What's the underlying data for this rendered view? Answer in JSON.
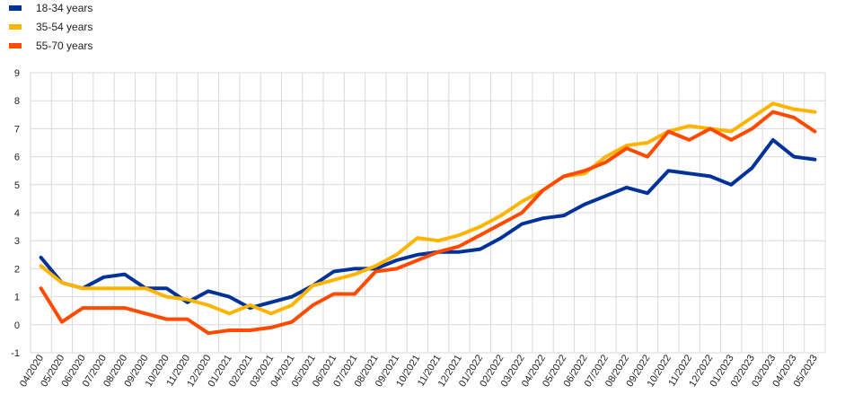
{
  "chart_data": {
    "type": "line",
    "title": "",
    "xlabel": "",
    "ylabel": "",
    "ylim": [
      -1,
      9
    ],
    "yticks": [
      -1,
      0,
      1,
      2,
      3,
      4,
      5,
      6,
      7,
      8,
      9
    ],
    "grid": true,
    "legend_position": "top-left",
    "categories": [
      "04/2020",
      "05/2020",
      "06/2020",
      "07/2020",
      "08/2020",
      "09/2020",
      "10/2020",
      "11/2020",
      "12/2020",
      "01/2021",
      "02/2021",
      "03/2021",
      "04/2021",
      "05/2021",
      "06/2021",
      "07/2021",
      "08/2021",
      "09/2021",
      "10/2021",
      "11/2021",
      "12/2021",
      "01/2022",
      "02/2022",
      "03/2022",
      "04/2022",
      "05/2022",
      "06/2022",
      "07/2022",
      "08/2022",
      "09/2022",
      "10/2022",
      "11/2022",
      "12/2022",
      "01/2023",
      "02/2023",
      "03/2023",
      "04/2023",
      "05/2023"
    ],
    "series": [
      {
        "name": "18-34 years",
        "color": "#003299",
        "values": [
          2.4,
          1.5,
          1.3,
          1.7,
          1.8,
          1.3,
          1.3,
          0.8,
          1.2,
          1.0,
          0.6,
          0.8,
          1.0,
          1.4,
          1.9,
          2.0,
          2.0,
          2.3,
          2.5,
          2.6,
          2.6,
          2.7,
          3.1,
          3.6,
          3.8,
          3.9,
          4.3,
          4.6,
          4.9,
          4.7,
          5.5,
          5.4,
          5.3,
          5.0,
          5.6,
          6.6,
          6.0,
          5.9
        ]
      },
      {
        "name": "35-54 years",
        "color": "#FFB400",
        "values": [
          2.1,
          1.5,
          1.3,
          1.3,
          1.3,
          1.3,
          1.0,
          0.9,
          0.7,
          0.4,
          0.7,
          0.4,
          0.7,
          1.4,
          1.6,
          1.8,
          2.1,
          2.5,
          3.1,
          3.0,
          3.2,
          3.5,
          3.9,
          4.4,
          4.8,
          5.3,
          5.4,
          6.0,
          6.4,
          6.5,
          6.9,
          7.1,
          7.0,
          6.9,
          7.4,
          7.9,
          7.7,
          7.6
        ]
      },
      {
        "name": "55-70 years",
        "color": "#FF4B00",
        "values": [
          1.3,
          0.1,
          0.6,
          0.6,
          0.6,
          0.4,
          0.2,
          0.2,
          -0.3,
          -0.2,
          -0.2,
          -0.1,
          0.1,
          0.7,
          1.1,
          1.1,
          1.9,
          2.0,
          2.3,
          2.6,
          2.8,
          3.2,
          3.6,
          4.0,
          4.8,
          5.3,
          5.5,
          5.8,
          6.3,
          6.0,
          6.9,
          6.6,
          7.0,
          6.6,
          7.0,
          7.6,
          7.4,
          6.9
        ]
      }
    ]
  }
}
